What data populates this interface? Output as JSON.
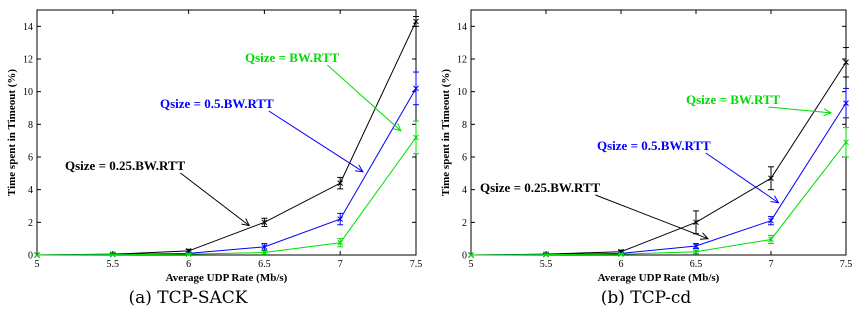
{
  "chart_data": [
    {
      "type": "line",
      "caption": "(a) TCP-SACK",
      "xlabel": "Average UDP Rate (Mb/s)",
      "ylabel": "Time spent in Timeout (%)",
      "x": [
        5,
        5.5,
        6,
        6.5,
        7,
        7.5
      ],
      "xlim": [
        5,
        7.5
      ],
      "ylim": [
        0,
        15
      ],
      "xticks": [
        "5",
        "5.5",
        "6",
        "6.5",
        "7",
        "7.5"
      ],
      "yticks": [
        "0",
        "2",
        "4",
        "6",
        "8",
        "10",
        "12",
        "14"
      ],
      "series": [
        {
          "name": "Qsize = 0.25.BW.RTT",
          "color": "#000000",
          "values": [
            0,
            0.05,
            0.25,
            2.0,
            4.4,
            14.3
          ],
          "err": [
            0,
            0.05,
            0.1,
            0.25,
            0.35,
            0.3
          ]
        },
        {
          "name": "Qsize = 0.5.BW.RTT",
          "color": "#0000ff",
          "values": [
            0,
            0.03,
            0.1,
            0.5,
            2.2,
            10.2
          ],
          "err": [
            0,
            0.03,
            0.05,
            0.2,
            0.35,
            1.0
          ]
        },
        {
          "name": "Qsize = BW.RTT",
          "color": "#00dd00",
          "values": [
            0,
            0.02,
            0.05,
            0.15,
            0.75,
            7.2
          ],
          "err": [
            0,
            0.02,
            0.03,
            0.1,
            0.25,
            1.0
          ]
        }
      ],
      "annotations": [
        {
          "text": "Qsize = BW.RTT",
          "color": "#00dd00",
          "target": [
            7.4,
            7.6
          ]
        },
        {
          "text": "Qsize = 0.5.BW.RTT",
          "color": "#0000ff",
          "target": [
            7.15,
            5.1
          ]
        },
        {
          "text": "Qsize = 0.25.BW.RTT",
          "color": "#000000",
          "target": [
            6.4,
            1.8
          ]
        }
      ]
    },
    {
      "type": "line",
      "caption": "(b) TCP-cd",
      "xlabel": "Average UDP Rate (Mb/s)",
      "ylabel": "Time spent in Timeout (%)",
      "x": [
        5,
        5.5,
        6,
        6.5,
        7,
        7.5
      ],
      "xlim": [
        5,
        7.5
      ],
      "ylim": [
        0,
        15
      ],
      "xticks": [
        "5",
        "5.5",
        "6",
        "6.5",
        "7",
        "7.5"
      ],
      "yticks": [
        "0",
        "2",
        "4",
        "6",
        "8",
        "10",
        "12",
        "14"
      ],
      "series": [
        {
          "name": "Qsize = 0.25.BW.RTT",
          "color": "#000000",
          "values": [
            0,
            0.05,
            0.2,
            2.0,
            4.7,
            11.8
          ],
          "err": [
            0,
            0.05,
            0.1,
            0.7,
            0.7,
            0.9
          ]
        },
        {
          "name": "Qsize = 0.5.BW.RTT",
          "color": "#0000ff",
          "values": [
            0,
            0.03,
            0.1,
            0.55,
            2.1,
            9.3
          ],
          "err": [
            0,
            0.03,
            0.05,
            0.15,
            0.25,
            0.9
          ]
        },
        {
          "name": "Qsize = BW.RTT",
          "color": "#00dd00",
          "values": [
            0,
            0.02,
            0.05,
            0.2,
            0.95,
            6.9
          ],
          "err": [
            0,
            0.02,
            0.03,
            0.1,
            0.25,
            0.9
          ]
        }
      ],
      "annotations": [
        {
          "text": "Qsize = BW.RTT",
          "color": "#00dd00",
          "target": [
            7.4,
            8.7
          ]
        },
        {
          "text": "Qsize = 0.5.BW.RTT",
          "color": "#0000ff",
          "target": [
            7.05,
            3.2
          ]
        },
        {
          "text": "Qsize = 0.25.BW.RTT",
          "color": "#000000",
          "target": [
            6.58,
            1.0
          ]
        }
      ]
    }
  ]
}
